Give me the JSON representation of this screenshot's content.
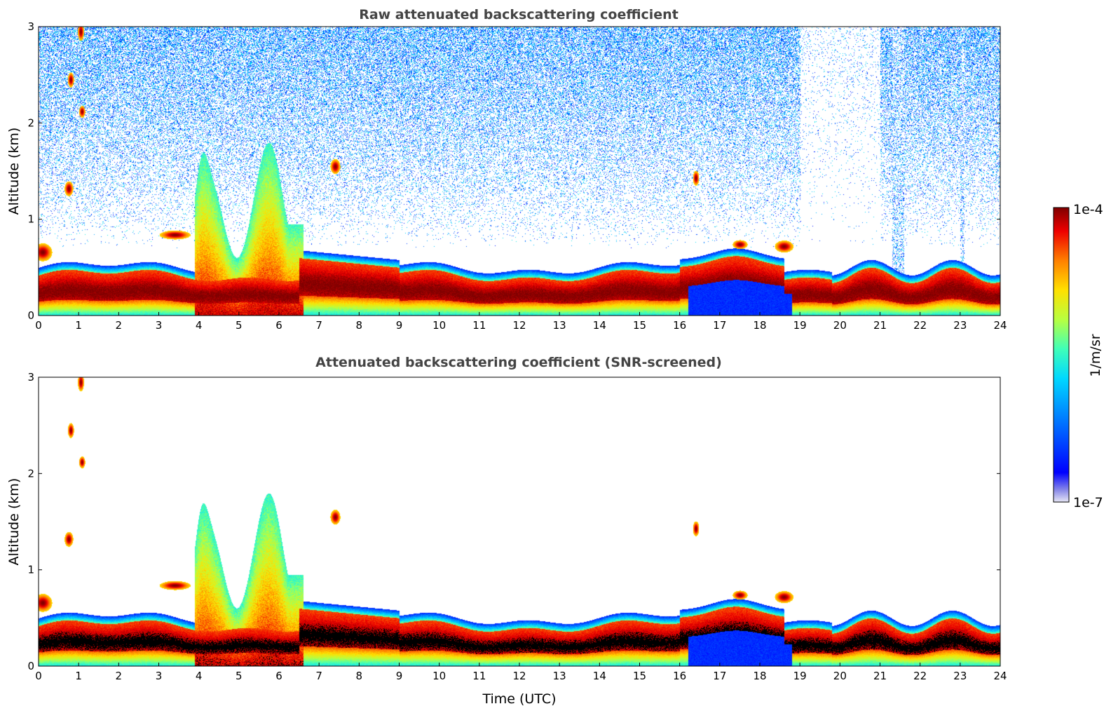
{
  "chart_data": [
    {
      "type": "heatmap",
      "title": "Raw attenuated backscattering coefficient",
      "xlabel": "",
      "ylabel": "Altitude (km)",
      "xlim": [
        0,
        24
      ],
      "ylim": [
        0,
        3
      ],
      "xticks": [
        "0",
        "1",
        "2",
        "3",
        "4",
        "5",
        "6",
        "7",
        "8",
        "9",
        "10",
        "11",
        "12",
        "13",
        "14",
        "15",
        "16",
        "17",
        "18",
        "19",
        "20",
        "21",
        "22",
        "23",
        "24"
      ],
      "yticks": [
        "0",
        "1",
        "2",
        "3"
      ],
      "screened": false
    },
    {
      "type": "heatmap",
      "title": "Attenuated backscattering coefficient (SNR-screened)",
      "xlabel": "Time (UTC)",
      "ylabel": "Altitude (km)",
      "xlim": [
        0,
        24
      ],
      "ylim": [
        0,
        3
      ],
      "xticks": [
        "0",
        "1",
        "2",
        "3",
        "4",
        "5",
        "6",
        "7",
        "8",
        "9",
        "10",
        "11",
        "12",
        "13",
        "14",
        "15",
        "16",
        "17",
        "18",
        "19",
        "20",
        "21",
        "22",
        "23",
        "24"
      ],
      "yticks": [
        "0",
        "1",
        "2",
        "3"
      ],
      "screened": true
    }
  ],
  "colorbar": {
    "max_label": "1e-4",
    "min_label": "1e-7",
    "unit_label": "1/m/sr",
    "scale": "log",
    "range": [
      1e-07,
      0.0001
    ],
    "colormap": "jet"
  },
  "colors": {
    "title": "#444444",
    "axis": "#000000",
    "background": "#ffffff"
  }
}
